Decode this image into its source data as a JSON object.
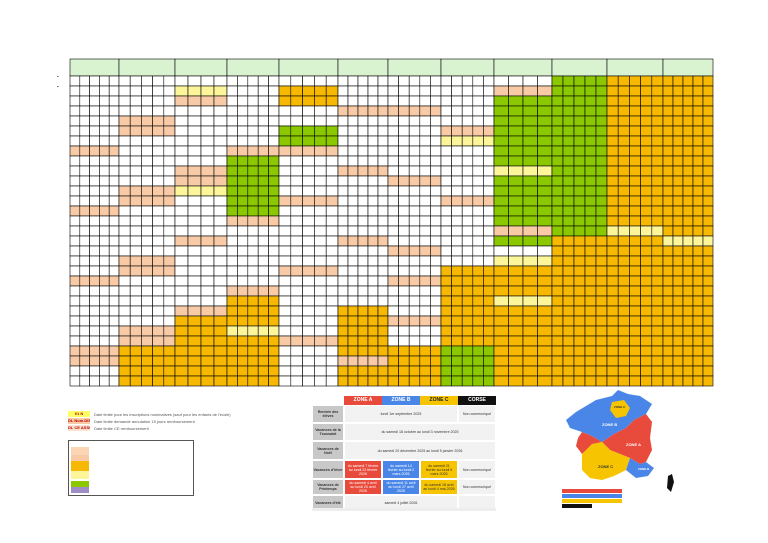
{
  "calendar": {
    "months": 12,
    "rows": 31,
    "colors": {
      "header": "#d9f2d0",
      "orange": "#f6b800",
      "peach": "#f8caa6",
      "green": "#8bc800",
      "yellow": "#fcf59a",
      "white": "#ffffff",
      "border": "#000000"
    }
  },
  "legend": {
    "items": [
      {
        "swatch": "01 N",
        "color": "#ffff66",
        "text": "Date limite pour les inscriptions nominatives (sauf pour les enfants de l'école)"
      },
      {
        "swatch": "DL Nom.DIS",
        "color": "#f8caa6",
        "text": "Date limite demande annulation 15 jours remboursement"
      },
      {
        "swatch": "DL CE ASSO",
        "color": "#fbe3d0",
        "text": "Date limite CE remboursement"
      }
    ],
    "box_colors": [
      "#fcd5b4",
      "#f8caa6",
      "#f6b800",
      "#fcf59a",
      "#8bc800",
      "#a08cc8"
    ]
  },
  "school": {
    "zones": [
      {
        "label": "ZONE A",
        "color": "#e84a3c"
      },
      {
        "label": "ZONE B",
        "color": "#4a86e8"
      },
      {
        "label": "ZONE C",
        "color": "#f6c400"
      },
      {
        "label": "CORSE",
        "color": "#111111"
      }
    ],
    "rows": [
      {
        "label": "Rentrée des élèves",
        "cells": [
          {
            "text": "lundi 1er septembre 2025",
            "span": [
              0,
              3
            ],
            "color": "#f2f2f2"
          },
          {
            "text": "Non communiqué",
            "span": [
              3,
              4
            ],
            "color": "#f2f2f2"
          }
        ]
      },
      {
        "label": "Vacances de la Toussaint",
        "cells": [
          {
            "text": "du samedi 18 octobre au lundi 3 novembre 2025",
            "span": [
              0,
              4
            ],
            "color": "#f2f2f2"
          }
        ]
      },
      {
        "label": "Vacances de Noël",
        "cells": [
          {
            "text": "du samedi 20 décembre 2025 au lundi 5 janvier 2026",
            "span": [
              0,
              4
            ],
            "color": "#f2f2f2"
          }
        ]
      },
      {
        "label": "Vacances d'hiver",
        "cells": [
          {
            "text": "du samedi 7 février au lundi 23 février 2026",
            "span": [
              0,
              1
            ],
            "color": "#e84a3c"
          },
          {
            "text": "du samedi 14 février au lundi 2 mars 2026",
            "span": [
              1,
              2
            ],
            "color": "#4a86e8"
          },
          {
            "text": "du samedi 21 février au lundi 9 mars 2026",
            "span": [
              2,
              3
            ],
            "color": "#f6c400"
          },
          {
            "text": "Non communiqué",
            "span": [
              3,
              4
            ],
            "color": "#f2f2f2"
          }
        ]
      },
      {
        "label": "Vacances de Printemps",
        "cells": [
          {
            "text": "du samedi 4 avril au lundi 20 avril 2026",
            "span": [
              0,
              1
            ],
            "color": "#e84a3c"
          },
          {
            "text": "du samedi 11 avril au lundi 27 avril 2026",
            "span": [
              1,
              2
            ],
            "color": "#4a86e8"
          },
          {
            "text": "du samedi 18 avril au lundi 4 mai 2026",
            "span": [
              2,
              3
            ],
            "color": "#f6c400"
          },
          {
            "text": "Non communiqué",
            "span": [
              3,
              4
            ],
            "color": "#f2f2f2"
          }
        ]
      },
      {
        "label": "Vacances d'été",
        "cells": [
          {
            "text": "samedi 4 juillet 2026",
            "span": [
              0,
              3
            ],
            "color": "#f2f2f2"
          },
          {
            "text": "",
            "span": [
              3,
              4
            ],
            "color": "#f2f2f2"
          }
        ]
      }
    ]
  },
  "map": {
    "zone_labels": [
      "ZONE A",
      "ZONE B",
      "ZONE C"
    ],
    "legend_colors": [
      "#e84a3c",
      "#4a86e8",
      "#f6c400",
      "#111111"
    ]
  }
}
